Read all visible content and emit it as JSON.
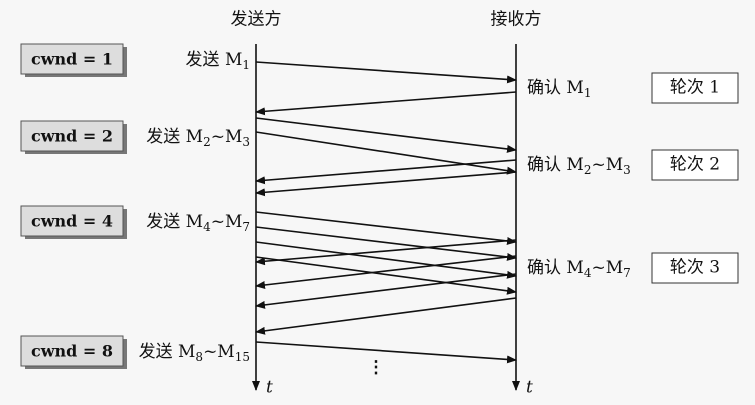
{
  "header": {
    "sender": "发送方",
    "receiver": "接收方"
  },
  "rounds": [
    {
      "cwnd": "cwnd = 1",
      "send": [
        {
          "text": "发送 M"
        },
        {
          "sub": "1"
        }
      ],
      "ack": [
        {
          "text": "确认 M"
        },
        {
          "sub": "1"
        }
      ],
      "round": "轮次 1"
    },
    {
      "cwnd": "cwnd = 2",
      "send": [
        {
          "text": "发送 M"
        },
        {
          "sub": "2"
        },
        {
          "text": "~M"
        },
        {
          "sub": "3"
        }
      ],
      "ack": [
        {
          "text": "确认 M"
        },
        {
          "sub": "2"
        },
        {
          "text": "~M"
        },
        {
          "sub": "3"
        }
      ],
      "round": "轮次 2"
    },
    {
      "cwnd": "cwnd = 4",
      "send": [
        {
          "text": "发送 M"
        },
        {
          "sub": "4"
        },
        {
          "text": "~M"
        },
        {
          "sub": "7"
        }
      ],
      "ack": [
        {
          "text": "确认 M"
        },
        {
          "sub": "4"
        },
        {
          "text": "~M"
        },
        {
          "sub": "7"
        }
      ],
      "round": "轮次 3"
    },
    {
      "cwnd": "cwnd = 8",
      "send": [
        {
          "text": "发送 M"
        },
        {
          "sub": "8"
        },
        {
          "text": "~M"
        },
        {
          "sub": "15"
        }
      ]
    }
  ],
  "time_axis": {
    "sender": "t",
    "receiver": "t"
  },
  "continuation": "⋮"
}
